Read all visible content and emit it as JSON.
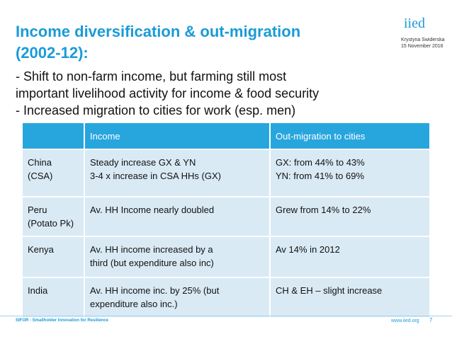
{
  "header": {
    "title": [
      "Income diversification & out-migration",
      "(2002-12):"
    ],
    "logo": "iied",
    "author": "Krystyna Swiderska",
    "date": "15 November 2016"
  },
  "bullets": [
    [
      "- Shift to non-farm income, but farming still most",
      "important livelihood activity for income & food security"
    ],
    [
      "- Increased migration to cities for work (esp. men)"
    ]
  ],
  "table": {
    "header": [
      "",
      "Income",
      "Out-migration to cities"
    ],
    "rows": [
      [
        [
          "China",
          "(CSA)"
        ],
        [
          "Steady increase GX & YN",
          "3-4 x increase in CSA HHs (GX)"
        ],
        [
          "GX: from 44% to 43%",
          "YN: from 41% to 69%"
        ]
      ],
      [
        [
          "Peru",
          "(Potato Pk)"
        ],
        [
          "Av. HH Income nearly doubled"
        ],
        [
          "Grew from 14% to 22%"
        ]
      ],
      [
        [
          "Kenya"
        ],
        [
          "Av. HH income increased by a",
          "third (but expenditure also inc)"
        ],
        [
          "Av 14% in 2012"
        ]
      ],
      [
        [
          "India"
        ],
        [
          "Av. HH income inc. by 25% (but",
          "expenditure also inc.)"
        ],
        [
          "CH & EH – slight increase"
        ]
      ]
    ]
  },
  "footer": {
    "left": "SIFOR - Smallholder Innovation for Resilience",
    "url": "www.iied.org",
    "page": "7"
  }
}
